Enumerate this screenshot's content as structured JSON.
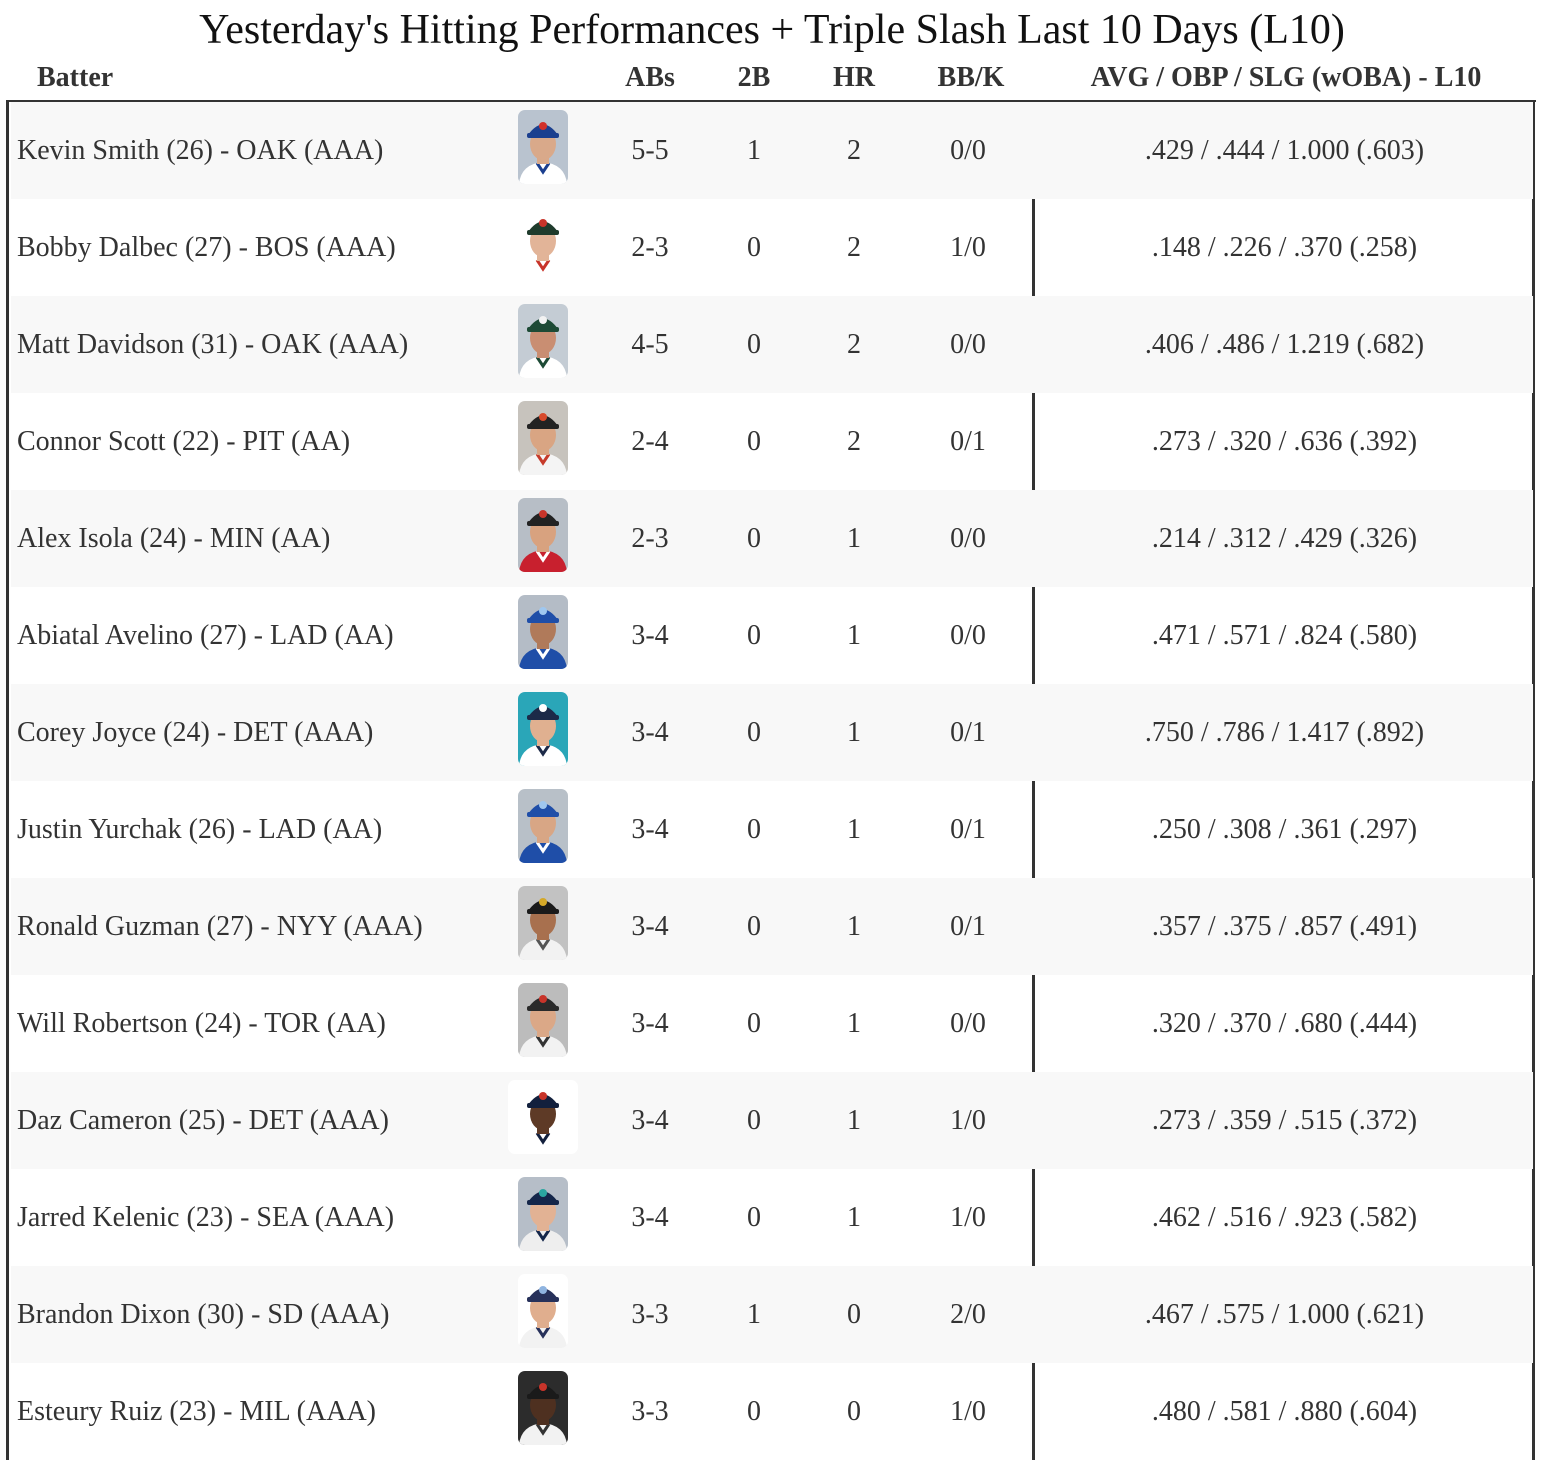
{
  "title": "Yesterday's Hitting Performances + Triple Slash Last 10 Days (L10)",
  "columns": {
    "batter": "Batter",
    "abs": "ABs",
    "doubles": "2B",
    "hr": "HR",
    "bbk": "BB/K",
    "slash": "AVG / OBP / SLG (wOBA) - L10"
  },
  "rows": [
    {
      "batter": "Kevin Smith (26) - OAK (AAA)",
      "abs": "5-5",
      "doubles": "1",
      "hr": "2",
      "bbk": "0/0",
      "slash": ".429 / .444 / 1.000 (.603)",
      "headshot": {
        "bg": "#b9c3cf",
        "cap": "#1b3f8f",
        "logo": "#d2302a",
        "jersey": "#ffffff",
        "trim": "#1b3f8f",
        "skin": "#d9a98a",
        "wide": false
      }
    },
    {
      "batter": "Bobby Dalbec (27) - BOS (AAA)",
      "abs": "2-3",
      "doubles": "0",
      "hr": "2",
      "bbk": "1/0",
      "slash": ".148 / .226 / .370 (.258)",
      "headshot": {
        "bg": "#ffffff",
        "cap": "#1f3b2c",
        "logo": "#c8342a",
        "jersey": "#ffffff",
        "trim": "#c8342a",
        "skin": "#e2b498",
        "wide": false
      }
    },
    {
      "batter": "Matt Davidson (31) - OAK (AAA)",
      "abs": "4-5",
      "doubles": "0",
      "hr": "2",
      "bbk": "0/0",
      "slash": ".406 / .486 / 1.219 (.682)",
      "headshot": {
        "bg": "#c4ccd4",
        "cap": "#1d4a35",
        "logo": "#f2f2f2",
        "jersey": "#ffffff",
        "trim": "#1d4a35",
        "skin": "#c98e72",
        "wide": false
      }
    },
    {
      "batter": "Connor Scott (22) - PIT (AA)",
      "abs": "2-4",
      "doubles": "0",
      "hr": "2",
      "bbk": "0/1",
      "slash": ".273 / .320 / .636 (.392)",
      "headshot": {
        "bg": "#c7c3bd",
        "cap": "#222222",
        "logo": "#d8492a",
        "jersey": "#f4f4f4",
        "trim": "#c63a2a",
        "skin": "#d9a583",
        "wide": false
      }
    },
    {
      "batter": "Alex Isola (24) - MIN (AA)",
      "abs": "2-3",
      "doubles": "0",
      "hr": "1",
      "bbk": "0/0",
      "slash": ".214 / .312 / .429 (.326)",
      "headshot": {
        "bg": "#b7bec6",
        "cap": "#222222",
        "logo": "#c8342a",
        "jersey": "#c8202e",
        "trim": "#ffffff",
        "skin": "#d8a27f",
        "wide": false
      }
    },
    {
      "batter": "Abiatal Avelino (27) - LAD (AA)",
      "abs": "3-4",
      "doubles": "0",
      "hr": "1",
      "bbk": "0/0",
      "slash": ".471 / .571 / .824 (.580)",
      "headshot": {
        "bg": "#b4bcc6",
        "cap": "#1f4ea8",
        "logo": "#9fc7ef",
        "jersey": "#1f4ea8",
        "trim": "#ffffff",
        "skin": "#b07a5a",
        "wide": false
      }
    },
    {
      "batter": "Corey Joyce (24) - DET (AAA)",
      "abs": "3-4",
      "doubles": "0",
      "hr": "1",
      "bbk": "0/1",
      "slash": ".750 / .786 / 1.417 (.892)",
      "headshot": {
        "bg": "#2aa6b8",
        "cap": "#1c2a48",
        "logo": "#ffffff",
        "jersey": "#ffffff",
        "trim": "#1c2a48",
        "skin": "#e0b090",
        "wide": false
      }
    },
    {
      "batter": "Justin Yurchak (26) - LAD (AA)",
      "abs": "3-4",
      "doubles": "0",
      "hr": "1",
      "bbk": "0/1",
      "slash": ".250 / .308 / .361 (.297)",
      "headshot": {
        "bg": "#b8c0c8",
        "cap": "#1f4ea8",
        "logo": "#9fc7ef",
        "jersey": "#1f4ea8",
        "trim": "#ffffff",
        "skin": "#d8a685",
        "wide": false
      }
    },
    {
      "batter": "Ronald Guzman (27) - NYY (AAA)",
      "abs": "3-4",
      "doubles": "0",
      "hr": "1",
      "bbk": "0/1",
      "slash": ".357 / .375 / .857 (.491)",
      "headshot": {
        "bg": "#c2c2c2",
        "cap": "#1a1a1a",
        "logo": "#d4a828",
        "jersey": "#f2f2f2",
        "trim": "#555555",
        "skin": "#a8704e",
        "wide": false
      }
    },
    {
      "batter": "Will Robertson (24) - TOR (AA)",
      "abs": "3-4",
      "doubles": "0",
      "hr": "1",
      "bbk": "0/0",
      "slash": ".320 / .370 / .680 (.444)",
      "headshot": {
        "bg": "#bcbcbc",
        "cap": "#2a2a2a",
        "logo": "#c8342a",
        "jersey": "#f2f2f2",
        "trim": "#333333",
        "skin": "#dba887",
        "wide": false
      }
    },
    {
      "batter": "Daz Cameron (25) - DET (AAA)",
      "abs": "3-4",
      "doubles": "0",
      "hr": "1",
      "bbk": "1/0",
      "slash": ".273 / .359 / .515 (.372)",
      "headshot": {
        "bg": "#ffffff",
        "cap": "#13203d",
        "logo": "#c8342a",
        "jersey": "#ffffff",
        "trim": "#13203d",
        "skin": "#5e3a26",
        "wide": true
      }
    },
    {
      "batter": "Jarred Kelenic (23) - SEA (AAA)",
      "abs": "3-4",
      "doubles": "0",
      "hr": "1",
      "bbk": "1/0",
      "slash": ".462 / .516 / .923 (.582)",
      "headshot": {
        "bg": "#b6bec8",
        "cap": "#14264a",
        "logo": "#2aa6a0",
        "jersey": "#eeeeee",
        "trim": "#14264a",
        "skin": "#e2b294",
        "wide": false
      }
    },
    {
      "batter": "Brandon Dixon (30) - SD (AAA)",
      "abs": "3-3",
      "doubles": "1",
      "hr": "0",
      "bbk": "2/0",
      "slash": ".467 / .575 / 1.000 (.621)",
      "headshot": {
        "bg": "#ffffff",
        "cap": "#27315a",
        "logo": "#8fb4e0",
        "jersey": "#f2f2f2",
        "trim": "#27315a",
        "skin": "#e0ae8e",
        "wide": false
      }
    },
    {
      "batter": "Esteury Ruiz (23) - MIL (AAA)",
      "abs": "3-3",
      "doubles": "0",
      "hr": "0",
      "bbk": "1/0",
      "slash": ".480 / .581 / .880 (.604)",
      "headshot": {
        "bg": "#2c2c2c",
        "cap": "#1a1a1a",
        "logo": "#c8342a",
        "jersey": "#f2f2f2",
        "trim": "#333333",
        "skin": "#4e3020",
        "wide": false
      }
    }
  ]
}
